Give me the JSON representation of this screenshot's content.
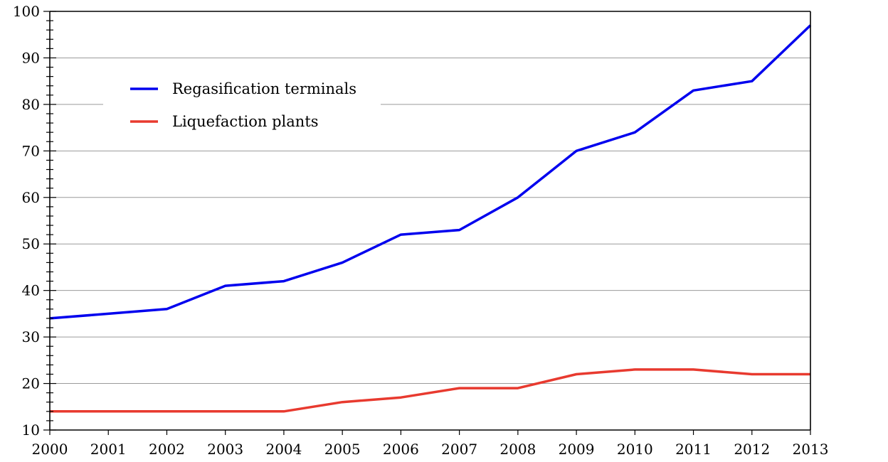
{
  "chart_data": {
    "type": "line",
    "x": [
      2000,
      2001,
      2002,
      2003,
      2004,
      2005,
      2006,
      2007,
      2008,
      2009,
      2010,
      2011,
      2012,
      2013
    ],
    "series": [
      {
        "name": "Regasification terminals",
        "color": "#0000ee",
        "values": [
          34,
          35,
          36,
          41,
          42,
          46,
          52,
          53,
          60,
          70,
          74,
          83,
          85,
          97
        ]
      },
      {
        "name": "Liquefaction plants",
        "color": "#e83a2f",
        "values": [
          14,
          14,
          14,
          14,
          14,
          16,
          17,
          19,
          19,
          22,
          23,
          23,
          22,
          22
        ]
      }
    ],
    "xlim": [
      2000,
      2013
    ],
    "ylim": [
      10,
      100
    ],
    "yticks": [
      10,
      20,
      30,
      40,
      50,
      60,
      70,
      80,
      90,
      100
    ],
    "xticks": [
      2000,
      2001,
      2002,
      2003,
      2004,
      2005,
      2006,
      2007,
      2008,
      2009,
      2010,
      2011,
      2012,
      2013
    ],
    "grid": "horizontal",
    "legend_position": "top-left",
    "title": "",
    "xlabel": "",
    "ylabel": ""
  }
}
